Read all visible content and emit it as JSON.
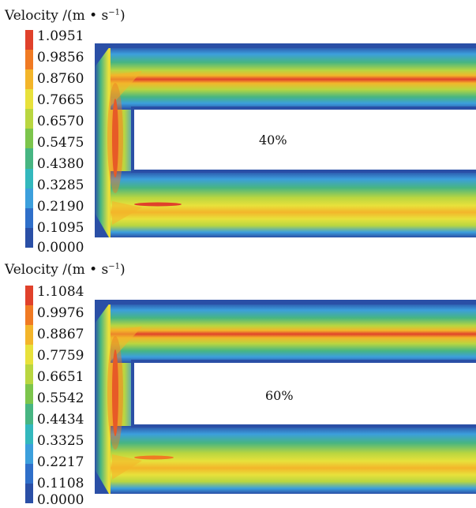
{
  "panels": [
    {
      "title": "Velocity /(m • s",
      "title_unit_exp": "−1",
      "title_close": ")",
      "scale": [
        "1.0951",
        "0.9856",
        "0.8760",
        "0.7665",
        "0.6570",
        "0.5475",
        "0.4380",
        "0.3285",
        "0.2190",
        "0.1095",
        "0.0000"
      ],
      "annotation": "40%"
    },
    {
      "title": "Velocity /(m • s",
      "title_unit_exp": "−1",
      "title_close": ")",
      "scale": [
        "1.1084",
        "0.9976",
        "0.8867",
        "0.7759",
        "0.6651",
        "0.5542",
        "0.4434",
        "0.3325",
        "0.2217",
        "0.1108",
        "0.0000"
      ],
      "annotation": "60%"
    }
  ],
  "colors": {
    "bands": [
      "#e0412b",
      "#f07a23",
      "#f3b52a",
      "#e8e13b",
      "#b9d640",
      "#7cc54c",
      "#47b582",
      "#33b8bd",
      "#3c9fdc",
      "#2f6fc9",
      "#2a4fa6"
    ]
  }
}
